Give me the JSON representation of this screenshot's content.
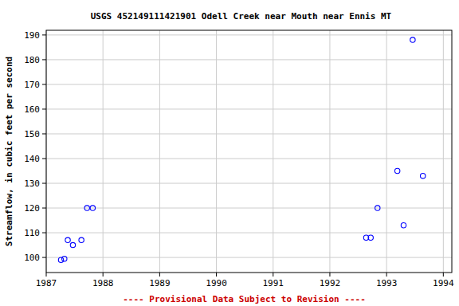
{
  "chart_data": {
    "type": "scatter",
    "title": "USGS 452149111421901 Odell Creek near Mouth near Ennis MT",
    "y_label": "Streamflow, in cubic feet per second",
    "annotations": [
      "---- Provisional Data Subject to Revision ----"
    ],
    "x": [
      1987.26,
      1987.32,
      1987.38,
      1987.47,
      1987.62,
      1987.72,
      1987.82,
      1992.64,
      1992.72,
      1992.84,
      1993.19,
      1993.3,
      1993.46,
      1993.64
    ],
    "values": [
      99,
      99.5,
      107,
      105,
      107,
      120,
      120,
      108,
      108,
      120,
      135,
      113,
      188,
      133
    ],
    "color": "#0000ff",
    "marker": "circle-open",
    "xlim": [
      1987,
      1994.15
    ],
    "xticks": [
      1987,
      1988,
      1989,
      1990,
      1991,
      1992,
      1993,
      1994
    ],
    "ylim": [
      93.9,
      191.9
    ],
    "yticks": [
      100,
      110,
      120,
      130,
      140,
      150,
      160,
      170,
      180,
      190
    ],
    "grid": true
  }
}
